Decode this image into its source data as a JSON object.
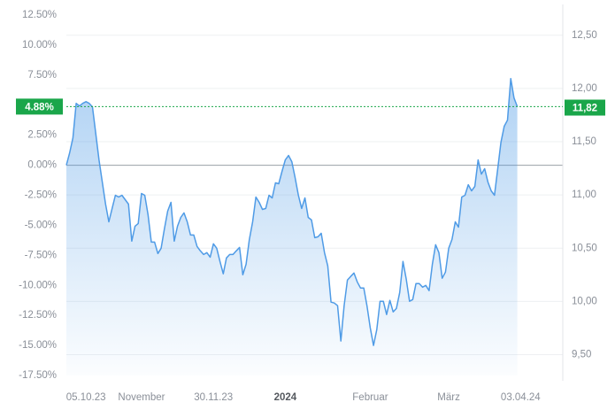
{
  "chart_data": {
    "type": "line",
    "series": [
      {
        "color": "#4f9be6",
        "values": [
          0,
          1.03,
          2.28,
          5.15,
          4.93,
          5.15,
          5.29,
          5.15,
          4.85,
          2.65,
          0.44,
          -1.4,
          -3.24,
          -4.71,
          -3.6,
          -2.5,
          -2.65,
          -2.5,
          -2.87,
          -3.24,
          -6.32,
          -5.07,
          -4.85,
          -2.35,
          -2.5,
          -4.12,
          -6.4,
          -6.4,
          -7.35,
          -6.91,
          -5.29,
          -3.82,
          -3.09,
          -6.32,
          -5.07,
          -4.34,
          -3.97,
          -4.71,
          -5.81,
          -5.81,
          -6.76,
          -7.13,
          -7.43,
          -7.28,
          -7.65,
          -6.54,
          -6.91,
          -8.01,
          -9.04,
          -7.72,
          -7.43,
          -7.43,
          -7.13,
          -6.84,
          -9.12,
          -8.24,
          -6.18,
          -4.71,
          -2.65,
          -3.09,
          -3.68,
          -3.6,
          -2.5,
          -2.72,
          -1.47,
          -1.54,
          -0.51,
          0.44,
          0.81,
          0.29,
          -1.03,
          -2.5,
          -3.6,
          -2.72,
          -4.34,
          -4.56,
          -6.03,
          -5.96,
          -5.66,
          -7.28,
          -8.38,
          -11.4,
          -11.47,
          -11.69,
          -14.63,
          -11.69,
          -9.56,
          -9.26,
          -8.97,
          -9.71,
          -10.22,
          -10.22,
          -11.69,
          -13.53,
          -15.0,
          -13.68,
          -11.32,
          -11.32,
          -12.43,
          -11.25,
          -12.21,
          -11.91,
          -10.59,
          -8.01,
          -9.49,
          -11.32,
          -11.18,
          -9.85,
          -9.85,
          -10.15,
          -10.0,
          -10.44,
          -8.24,
          -6.62,
          -7.28,
          -9.41,
          -8.9,
          -6.91,
          -6.18,
          -4.71,
          -5.15,
          -2.65,
          -2.5,
          -1.62,
          -2.13,
          -1.76,
          0.44,
          -0.74,
          -0.29,
          -1.4,
          -2.13,
          -2.5,
          -0.29,
          1.91,
          3.24,
          3.75,
          7.21,
          5.59,
          4.88
        ]
      }
    ],
    "xlim": [
      0,
      140
    ],
    "xticks": [
      {
        "value": 6,
        "label": "05.10.23"
      },
      {
        "value": 23,
        "label": "November"
      },
      {
        "value": 45,
        "label": "30.11.23"
      },
      {
        "value": 67,
        "label": "2024",
        "bold": true
      },
      {
        "value": 93,
        "label": "Februar"
      },
      {
        "value": 117,
        "label": "März"
      },
      {
        "value": 139,
        "label": "03.04.24"
      }
    ],
    "ylim": [
      -17.5,
      12.5
    ],
    "yticks": [
      {
        "value": 12.5,
        "label": "12.50%"
      },
      {
        "value": 10,
        "label": "10.00%"
      },
      {
        "value": 7.5,
        "label": "7.50%"
      },
      {
        "value": 2.5,
        "label": "2.50%"
      },
      {
        "value": 0,
        "label": "0.00%"
      },
      {
        "value": -2.5,
        "label": "-2.50%"
      },
      {
        "value": -5,
        "label": "-5.00%"
      },
      {
        "value": -7.5,
        "label": "-7.50%"
      },
      {
        "value": -10,
        "label": "-10.00%"
      },
      {
        "value": -12.5,
        "label": "-12.50%"
      },
      {
        "value": -15,
        "label": "-15.00%"
      },
      {
        "value": -17.5,
        "label": "-17.50%"
      }
    ],
    "y2lim": [
      9.305,
      12.689
    ],
    "y2ticks": [
      {
        "value": 12.5,
        "label": "12,50"
      },
      {
        "value": 12,
        "label": "12,00"
      },
      {
        "value": 11.5,
        "label": "11,50"
      },
      {
        "value": 11,
        "label": "11,00"
      },
      {
        "value": 10.5,
        "label": "10,50"
      },
      {
        "value": 10,
        "label": "10,00"
      },
      {
        "value": 9.5,
        "label": "9,50"
      }
    ],
    "last_value": {
      "value": 4.88,
      "label": "4.88%"
    },
    "last_price": {
      "value": 11.82,
      "label": "11,82"
    },
    "marker_color": "#1aa64a",
    "grid": true
  }
}
